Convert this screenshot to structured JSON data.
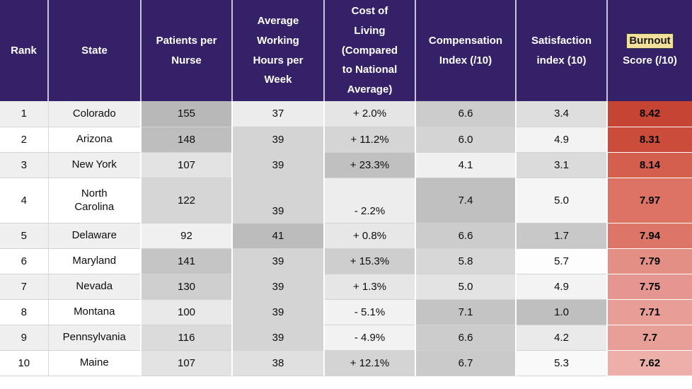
{
  "table": {
    "title": "State nurse burnout ranking table",
    "headers": [
      {
        "id": "rank",
        "label": "Rank"
      },
      {
        "id": "state",
        "label": "State"
      },
      {
        "id": "patients",
        "label": "Patients per\nNurse"
      },
      {
        "id": "hours",
        "label": "Average\nWorking\nHours per\nWeek"
      },
      {
        "id": "cost",
        "label": "Cost of\nLiving\n(Compared\nto National\nAverage)"
      },
      {
        "id": "comp",
        "label": "Compensation\nIndex (/10)"
      },
      {
        "id": "sat",
        "label": "Satisfaction\nindex (10)"
      },
      {
        "id": "burnout",
        "highlight": "Burnout",
        "rest": "Score (/10)"
      }
    ],
    "value_columns": [
      "patients",
      "hours",
      "cost",
      "comp",
      "sat",
      "burnout"
    ],
    "rows": [
      {
        "rank": "1",
        "state": "Colorado",
        "cells": {
          "patients": {
            "v": "155",
            "bg": "#b8b8b8"
          },
          "hours": {
            "v": "37",
            "bg": "#ececec"
          },
          "cost": {
            "v": "+ 2.0%",
            "bg": "#e5e5e5"
          },
          "comp": {
            "v": "6.6",
            "bg": "#cccccc"
          },
          "sat": {
            "v": "3.4",
            "bg": "#dedede"
          },
          "burnout": {
            "v": "8.42",
            "bg": "#c64434"
          }
        }
      },
      {
        "rank": "2",
        "state": "Arizona",
        "cells": {
          "patients": {
            "v": "148",
            "bg": "#bebebe"
          },
          "hours": {
            "v": "39",
            "bg": "#d4d4d4"
          },
          "cost": {
            "v": "+ 11.2%",
            "bg": "#d5d5d5"
          },
          "comp": {
            "v": "6.0",
            "bg": "#d4d4d4"
          },
          "sat": {
            "v": "4.9",
            "bg": "#f3f3f3"
          },
          "burnout": {
            "v": "8.31",
            "bg": "#cb4c3b"
          }
        }
      },
      {
        "rank": "3",
        "state": "New York",
        "cells": {
          "patients": {
            "v": "107",
            "bg": "#e3e3e3"
          },
          "hours": {
            "v": "39",
            "bg": "#d4d4d4"
          },
          "cost": {
            "v": "+ 23.3%",
            "bg": "#c0c0c0"
          },
          "comp": {
            "v": "4.1",
            "bg": "#f0f0f0"
          },
          "sat": {
            "v": "3.1",
            "bg": "#dbdbdb"
          },
          "burnout": {
            "v": "8.14",
            "bg": "#d55f4e"
          }
        }
      },
      {
        "rank": "4",
        "state": "North\nCarolina",
        "cells": {
          "patients": {
            "v": "122",
            "bg": "#d6d6d6"
          },
          "hours": {
            "v": "39",
            "bg": "#d4d4d4"
          },
          "cost": {
            "v": "- 2.2%",
            "bg": "#ededed"
          },
          "comp": {
            "v": "7.4",
            "bg": "#c0c0c0"
          },
          "sat": {
            "v": "5.0",
            "bg": "#f5f5f5"
          },
          "burnout": {
            "v": "7.97",
            "bg": "#dc7365"
          }
        }
      },
      {
        "rank": "5",
        "state": "Delaware",
        "cells": {
          "patients": {
            "v": "92",
            "bg": "#f0f0f0"
          },
          "hours": {
            "v": "41",
            "bg": "#bcbcbc"
          },
          "cost": {
            "v": "+ 0.8%",
            "bg": "#e7e7e7"
          },
          "comp": {
            "v": "6.6",
            "bg": "#cccccc"
          },
          "sat": {
            "v": "1.7",
            "bg": "#c8c8c8"
          },
          "burnout": {
            "v": "7.94",
            "bg": "#dd7668"
          }
        }
      },
      {
        "rank": "6",
        "state": "Maryland",
        "cells": {
          "patients": {
            "v": "141",
            "bg": "#c5c5c5"
          },
          "hours": {
            "v": "39",
            "bg": "#d4d4d4"
          },
          "cost": {
            "v": "+ 15.3%",
            "bg": "#cecece"
          },
          "comp": {
            "v": "5.8",
            "bg": "#d7d7d7"
          },
          "sat": {
            "v": "5.7",
            "bg": "#fdfdfd"
          },
          "burnout": {
            "v": "7.79",
            "bg": "#e48f85"
          }
        }
      },
      {
        "rank": "7",
        "state": "Nevada",
        "cells": {
          "patients": {
            "v": "130",
            "bg": "#cfcfcf"
          },
          "hours": {
            "v": "39",
            "bg": "#d4d4d4"
          },
          "cost": {
            "v": "+ 1.3%",
            "bg": "#e6e6e6"
          },
          "comp": {
            "v": "5.0",
            "bg": "#e3e3e3"
          },
          "sat": {
            "v": "4.9",
            "bg": "#f3f3f3"
          },
          "burnout": {
            "v": "7.75",
            "bg": "#e69690"
          }
        }
      },
      {
        "rank": "8",
        "state": "Montana",
        "cells": {
          "patients": {
            "v": "100",
            "bg": "#e9e9e9"
          },
          "hours": {
            "v": "39",
            "bg": "#d4d4d4"
          },
          "cost": {
            "v": "- 5.1%",
            "bg": "#f2f2f2"
          },
          "comp": {
            "v": "7.1",
            "bg": "#c4c4c4"
          },
          "sat": {
            "v": "1.0",
            "bg": "#bfbfbf"
          },
          "burnout": {
            "v": "7.71",
            "bg": "#e89d96"
          }
        }
      },
      {
        "rank": "9",
        "state": "Pennsylvania",
        "cells": {
          "patients": {
            "v": "116",
            "bg": "#dbdbdb"
          },
          "hours": {
            "v": "39",
            "bg": "#d4d4d4"
          },
          "cost": {
            "v": "- 4.9%",
            "bg": "#f2f2f2"
          },
          "comp": {
            "v": "6.6",
            "bg": "#cccccc"
          },
          "sat": {
            "v": "4.2",
            "bg": "#eaeaea"
          },
          "burnout": {
            "v": "7.7",
            "bg": "#e89f98"
          }
        }
      },
      {
        "rank": "10",
        "state": "Maine",
        "cells": {
          "patients": {
            "v": "107",
            "bg": "#e3e3e3"
          },
          "hours": {
            "v": "38",
            "bg": "#e0e0e0"
          },
          "cost": {
            "v": "+ 12.1%",
            "bg": "#d4d4d4"
          },
          "comp": {
            "v": "6.7",
            "bg": "#cacaca"
          },
          "sat": {
            "v": "5.3",
            "bg": "#f9f9f9"
          },
          "burnout": {
            "v": "7.62",
            "bg": "#ecb0a9"
          }
        }
      }
    ]
  },
  "colors": {
    "header_bg": "#342168",
    "header_text": "#ffffff",
    "highlight_bg": "#f3e09a",
    "highlight_text": "#1a1a1a",
    "highlight_border": "#3a3a3a",
    "zebra": [
      "#efefef",
      "#ffffff"
    ],
    "burnout_value_text": "#000000"
  }
}
